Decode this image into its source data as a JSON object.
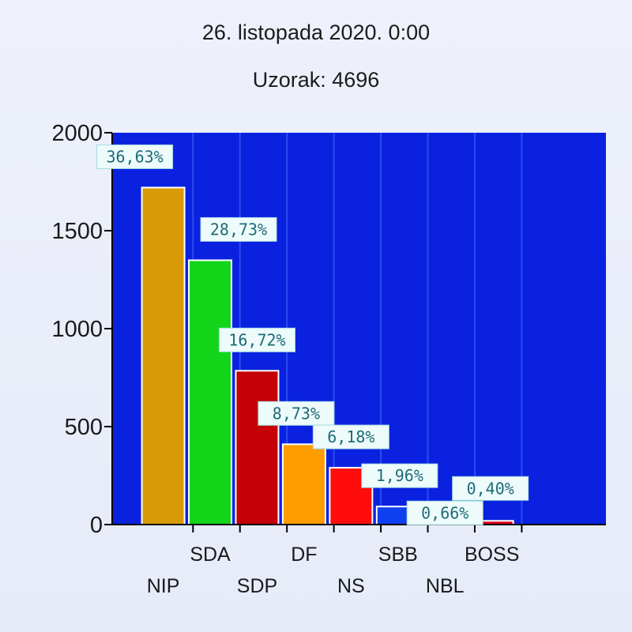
{
  "chart_data": {
    "type": "bar",
    "title": "26. listopada 2020.   0:00",
    "subtitle": "Uzorak: 4696",
    "xlabel": "",
    "ylabel": "",
    "ylim": [
      0,
      2000
    ],
    "yticks": [
      "0",
      "500",
      "1000",
      "1500",
      "2000"
    ],
    "grid": "vertical",
    "categories": [
      "NIP",
      "SDA",
      "SDP",
      "DF",
      "NS",
      "SBB",
      "NBL",
      "BOSS"
    ],
    "values": [
      1720,
      1349,
      785,
      410,
      290,
      92,
      31,
      19
    ],
    "data_labels": [
      "36,63%",
      "28,73%",
      "16,72%",
      "8,73%",
      "6,18%",
      "1,96%",
      "0,66%",
      "0,40%"
    ],
    "colors": {
      "plot_background": "#0a22e0",
      "gridline": "#2a4cf2",
      "axis": "#000000",
      "label_box": "#eefbfb",
      "label_text": "#1d6b78",
      "bars": [
        "#d99a06",
        "#12d51a",
        "#c40006",
        "#ff9d00",
        "#ff0d0d",
        "#0f40f0",
        "#78c42a",
        "#e0001a"
      ]
    }
  }
}
